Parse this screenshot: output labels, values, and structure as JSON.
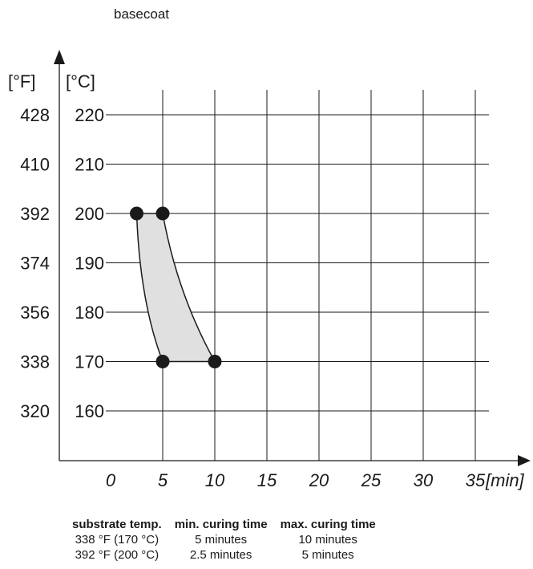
{
  "chart_data": {
    "type": "area",
    "title": "basecoat",
    "xlabel": "[min]",
    "ylabel": "[°C]",
    "ylabel_secondary": "[°F]",
    "xlim": [
      0,
      37
    ],
    "ylim": [
      150,
      227
    ],
    "x_ticks": [
      0,
      5,
      10,
      15,
      20,
      25,
      30,
      35
    ],
    "y_ticks": [
      160,
      170,
      180,
      190,
      200,
      210,
      220
    ],
    "y_ticks_fahrenheit": [
      320,
      338,
      356,
      374,
      392,
      410,
      428
    ],
    "grid": true,
    "points": [
      {
        "x": 2.5,
        "y": 200
      },
      {
        "x": 5,
        "y": 200
      },
      {
        "x": 5,
        "y": 170
      },
      {
        "x": 10,
        "y": 170
      }
    ],
    "series": [
      {
        "values_x": [
          2.5,
          5
        ],
        "values_y": [
          200,
          170
        ]
      },
      {
        "values_x": [
          5,
          10
        ],
        "values_y": [
          200,
          170
        ]
      }
    ],
    "fill_color": "#e0e0e0",
    "line_color": "#1a1a1a"
  },
  "table": {
    "headers": [
      "substrate temp.",
      "min. curing time",
      "max. curing time"
    ],
    "rows": [
      [
        "338 °F (170 °C)",
        "5 minutes",
        "10 minutes"
      ],
      [
        "392 °F (200 °C)",
        "2.5 minutes",
        "5 minutes"
      ]
    ]
  }
}
